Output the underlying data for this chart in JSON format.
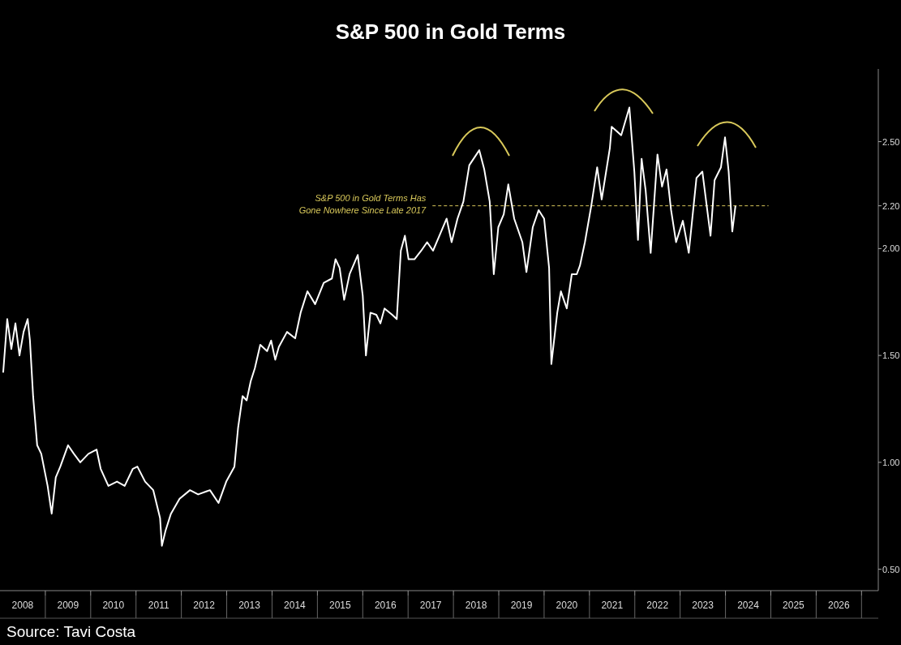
{
  "chart_data": {
    "type": "line",
    "title": "S&P 500 in Gold Terms",
    "annotations": [
      "Source: Tavi Costa"
    ],
    "xlim": [
      2008,
      2027.37
    ],
    "ylim": [
      0.4,
      2.84
    ],
    "xticks": [
      {
        "value": 2008.5,
        "label": "2008"
      },
      {
        "value": 2009.5,
        "label": "2009"
      },
      {
        "value": 2010.5,
        "label": "2010"
      },
      {
        "value": 2011.5,
        "label": "2011"
      },
      {
        "value": 2012.5,
        "label": "2012"
      },
      {
        "value": 2013.5,
        "label": "2013"
      },
      {
        "value": 2014.5,
        "label": "2014"
      },
      {
        "value": 2015.5,
        "label": "2015"
      },
      {
        "value": 2016.5,
        "label": "2016"
      },
      {
        "value": 2017.5,
        "label": "2017"
      },
      {
        "value": 2018.5,
        "label": "2018"
      },
      {
        "value": 2019.5,
        "label": "2019"
      },
      {
        "value": 2020.5,
        "label": "2020"
      },
      {
        "value": 2021.5,
        "label": "2021"
      },
      {
        "value": 2022.5,
        "label": "2022"
      },
      {
        "value": 2023.5,
        "label": "2023"
      },
      {
        "value": 2024.5,
        "label": "2024"
      },
      {
        "value": 2025.5,
        "label": "2025"
      },
      {
        "value": 2026.5,
        "label": "2026"
      },
      {
        "value": 2009,
        "label": null
      },
      {
        "value": 2010,
        "label": null
      },
      {
        "value": 2011,
        "label": null
      },
      {
        "value": 2012,
        "label": null
      },
      {
        "value": 2013,
        "label": null
      },
      {
        "value": 2014,
        "label": null
      },
      {
        "value": 2015,
        "label": null
      },
      {
        "value": 2016,
        "label": null
      },
      {
        "value": 2017,
        "label": null
      },
      {
        "value": 2018,
        "label": null
      },
      {
        "value": 2019,
        "label": null
      },
      {
        "value": 2020,
        "label": null
      },
      {
        "value": 2021,
        "label": null
      },
      {
        "value": 2022,
        "label": null
      },
      {
        "value": 2023,
        "label": null
      },
      {
        "value": 2024,
        "label": null
      },
      {
        "value": 2025,
        "label": null
      },
      {
        "value": 2026,
        "label": null
      },
      {
        "value": 2027,
        "label": null
      }
    ],
    "yticks": [
      {
        "value": 0.5,
        "label": "0.50"
      },
      {
        "value": 1,
        "label": "1.00"
      },
      {
        "value": 1.5,
        "label": "1.50"
      },
      {
        "value": 2,
        "label": "2.00"
      },
      {
        "value": 2.2,
        "label": "2.20"
      },
      {
        "value": 2.5,
        "label": "2.50"
      }
    ],
    "ref_lines": [
      {
        "axis": "y",
        "value": 2.2,
        "label": "S&P 500 in Gold Terms Has\nGone Nowhere Since Late 2017",
        "color": "#d8c85a",
        "line_style": "dashed"
      }
    ],
    "x": [
      2008.07,
      2008.16,
      2008.25,
      2008.34,
      2008.43,
      2008.52,
      2008.61,
      2008.66,
      2008.73,
      2008.82,
      2008.91,
      2009.05,
      2009.14,
      2009.23,
      2009.33,
      2009.5,
      2009.63,
      2009.77,
      2009.95,
      2010.13,
      2010.22,
      2010.39,
      2010.58,
      2010.75,
      2010.93,
      2011.03,
      2011.2,
      2011.38,
      2011.53,
      2011.57,
      2011.65,
      2011.77,
      2011.96,
      2012.19,
      2012.37,
      2012.63,
      2012.82,
      2012.99,
      2013.17,
      2013.25,
      2013.35,
      2013.44,
      2013.53,
      2013.62,
      2013.74,
      2013.89,
      2013.98,
      2014.07,
      2014.15,
      2014.33,
      2014.51,
      2014.63,
      2014.78,
      2014.95,
      2015.14,
      2015.32,
      2015.4,
      2015.49,
      2015.59,
      2015.71,
      2015.89,
      2016.0,
      2016.07,
      2016.17,
      2016.3,
      2016.39,
      2016.48,
      2016.65,
      2016.75,
      2016.84,
      2016.93,
      2017.01,
      2017.14,
      2017.29,
      2017.42,
      2017.55,
      2017.73,
      2017.85,
      2017.96,
      2018.09,
      2018.22,
      2018.35,
      2018.57,
      2018.68,
      2018.8,
      2018.89,
      2018.99,
      2019.11,
      2019.21,
      2019.34,
      2019.52,
      2019.61,
      2019.75,
      2019.88,
      2020.0,
      2020.11,
      2020.16,
      2020.29,
      2020.37,
      2020.5,
      2020.61,
      2020.72,
      2020.79,
      2020.9,
      2021.04,
      2021.17,
      2021.27,
      2021.45,
      2021.49,
      2021.7,
      2021.88,
      2021.99,
      2022.07,
      2022.15,
      2022.24,
      2022.35,
      2022.5,
      2022.6,
      2022.7,
      2022.8,
      2022.91,
      2023.06,
      2023.19,
      2023.36,
      2023.49,
      2023.67,
      2023.76,
      2023.9,
      2023.99,
      2024.07,
      2024.15,
      2024.22
    ],
    "series": [
      {
        "color": "#ffffff",
        "values": [
          1.42,
          1.67,
          1.53,
          1.65,
          1.5,
          1.61,
          1.67,
          1.57,
          1.31,
          1.08,
          1.04,
          0.89,
          0.76,
          0.93,
          0.98,
          1.08,
          1.04,
          1.0,
          1.04,
          1.06,
          0.97,
          0.89,
          0.91,
          0.89,
          0.97,
          0.98,
          0.91,
          0.87,
          0.74,
          0.61,
          0.68,
          0.76,
          0.83,
          0.87,
          0.85,
          0.87,
          0.81,
          0.91,
          0.98,
          1.16,
          1.31,
          1.29,
          1.38,
          1.44,
          1.55,
          1.52,
          1.57,
          1.48,
          1.54,
          1.61,
          1.58,
          1.7,
          1.8,
          1.74,
          1.84,
          1.86,
          1.95,
          1.91,
          1.76,
          1.88,
          1.97,
          1.78,
          1.5,
          1.7,
          1.69,
          1.65,
          1.72,
          1.69,
          1.67,
          1.99,
          2.06,
          1.95,
          1.95,
          1.99,
          2.03,
          1.99,
          2.08,
          2.14,
          2.03,
          2.14,
          2.22,
          2.39,
          2.46,
          2.37,
          2.22,
          1.88,
          2.1,
          2.16,
          2.3,
          2.14,
          2.03,
          1.89,
          2.1,
          2.18,
          2.14,
          1.91,
          1.46,
          1.7,
          1.8,
          1.72,
          1.88,
          1.88,
          1.92,
          2.03,
          2.2,
          2.38,
          2.23,
          2.47,
          2.57,
          2.53,
          2.66,
          2.36,
          2.04,
          2.42,
          2.27,
          1.98,
          2.44,
          2.29,
          2.37,
          2.18,
          2.03,
          2.13,
          1.98,
          2.33,
          2.36,
          2.06,
          2.32,
          2.38,
          2.52,
          2.36,
          2.08,
          2.2
        ]
      }
    ]
  }
}
